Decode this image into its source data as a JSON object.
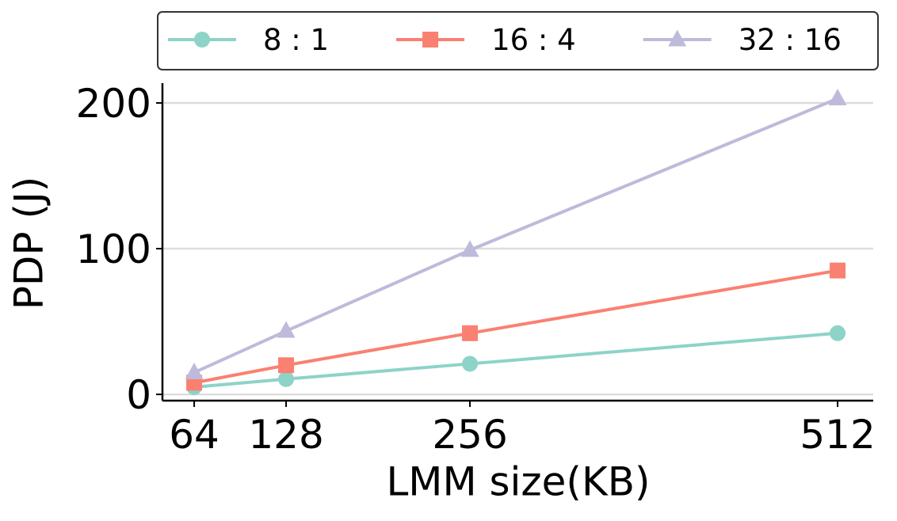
{
  "chart_data": {
    "type": "line",
    "x": [
      64,
      128,
      256,
      512
    ],
    "series": [
      {
        "name": "8 : 1",
        "color": "#8dd3c7",
        "marker": "circle",
        "values": [
          5,
          10.5,
          21,
          42
        ]
      },
      {
        "name": "16 : 4",
        "color": "#fa8072",
        "marker": "square",
        "values": [
          8,
          20,
          42,
          85
        ]
      },
      {
        "name": "32 : 16",
        "color": "#bebada",
        "marker": "triangle",
        "values": [
          15,
          43.5,
          99,
          203
        ]
      }
    ],
    "xlabel": "LMM size(KB)",
    "ylabel": "PDP (J)",
    "xlim": [
      41.9,
      536.8
    ],
    "ylim": [
      -4.3,
      213.6
    ],
    "xticks": [
      64,
      128,
      256,
      512
    ],
    "yticks": [
      0,
      100,
      200
    ],
    "grid": true,
    "legend": "top"
  }
}
